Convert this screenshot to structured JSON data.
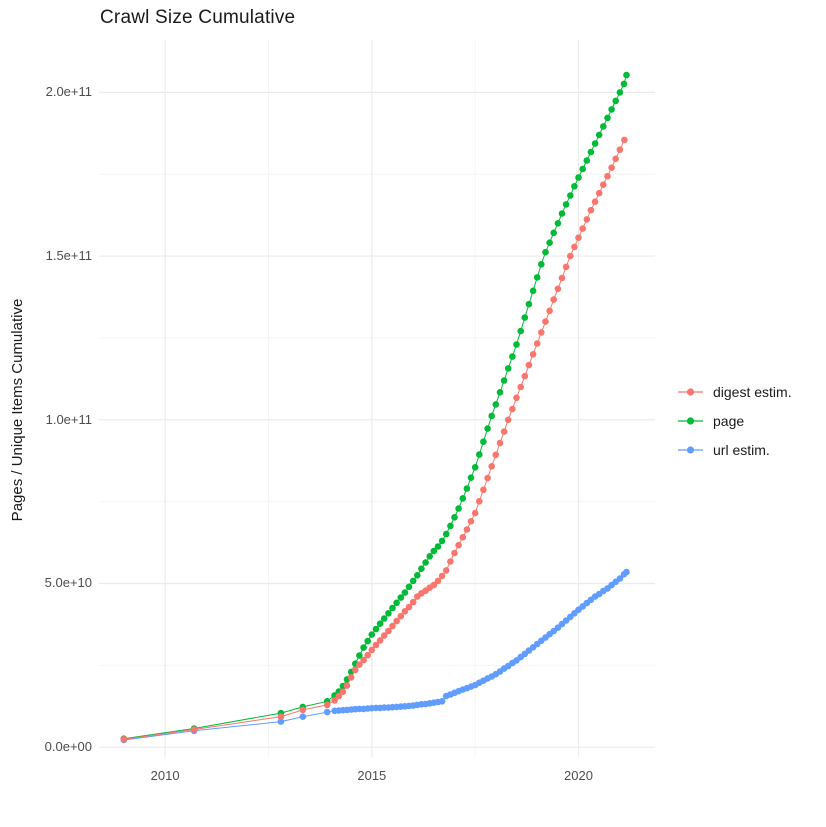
{
  "title": "Crawl Size Cumulative",
  "chart_data": {
    "type": "scatter",
    "title": "Crawl Size Cumulative",
    "xlabel": "",
    "ylabel": "Pages / Unique Items Cumulative",
    "legend_position": "right",
    "grid": true,
    "y_unit_note": "y values below are in billions (1e9) of pages / unique items",
    "xlim": [
      2008.4,
      2021.85
    ],
    "ylim": [
      -3,
      216
    ],
    "x_ticks": [
      {
        "value": 2010,
        "label": "2010"
      },
      {
        "value": 2015,
        "label": "2015"
      },
      {
        "value": 2020,
        "label": "2020"
      }
    ],
    "y_ticks": [
      {
        "value": 0,
        "label": "0.0e+00"
      },
      {
        "value": 50,
        "label": "5.0e+10"
      },
      {
        "value": 100,
        "label": "1.0e+11"
      },
      {
        "value": 150,
        "label": "1.5e+11"
      },
      {
        "value": 200,
        "label": "2.0e+11"
      }
    ],
    "x_minor": [
      2012.5,
      2017.5
    ],
    "y_minor": [
      25,
      75,
      125,
      175
    ],
    "series": [
      {
        "name": "digest estim.",
        "color": "#F8766D",
        "points": [
          [
            2009.0,
            2.4
          ],
          [
            2010.7,
            5.4
          ],
          [
            2012.8,
            9.3
          ],
          [
            2013.33,
            11.4
          ],
          [
            2013.92,
            12.9
          ],
          [
            2014.1,
            14.3
          ],
          [
            2014.2,
            15.6
          ],
          [
            2014.3,
            16.9
          ],
          [
            2014.4,
            18.8
          ],
          [
            2014.5,
            21.3
          ],
          [
            2014.6,
            23.6
          ],
          [
            2014.7,
            25.2
          ],
          [
            2014.8,
            26.6
          ],
          [
            2014.9,
            28.1
          ],
          [
            2015.0,
            29.7
          ],
          [
            2015.1,
            31.2
          ],
          [
            2015.2,
            32.6
          ],
          [
            2015.3,
            34.1
          ],
          [
            2015.4,
            35.5
          ],
          [
            2015.5,
            37.0
          ],
          [
            2015.6,
            38.5
          ],
          [
            2015.7,
            40.0
          ],
          [
            2015.8,
            41.5
          ],
          [
            2015.9,
            42.8
          ],
          [
            2016.0,
            44.3
          ],
          [
            2016.1,
            46.0
          ],
          [
            2016.2,
            47.0
          ],
          [
            2016.3,
            47.8
          ],
          [
            2016.4,
            48.7
          ],
          [
            2016.5,
            49.5
          ],
          [
            2016.6,
            50.8
          ],
          [
            2016.7,
            52.3
          ],
          [
            2016.8,
            54.0
          ],
          [
            2016.9,
            56.7
          ],
          [
            2017.0,
            59.3
          ],
          [
            2017.1,
            61.7
          ],
          [
            2017.2,
            64.1
          ],
          [
            2017.3,
            66.5
          ],
          [
            2017.4,
            69.0
          ],
          [
            2017.5,
            71.5
          ],
          [
            2017.6,
            75.1
          ],
          [
            2017.7,
            78.6
          ],
          [
            2017.8,
            82.2
          ],
          [
            2017.9,
            85.8
          ],
          [
            2018.0,
            89.3
          ],
          [
            2018.1,
            92.9
          ],
          [
            2018.2,
            96.4
          ],
          [
            2018.3,
            100.0
          ],
          [
            2018.4,
            103.3
          ],
          [
            2018.5,
            106.7
          ],
          [
            2018.6,
            110.0
          ],
          [
            2018.7,
            113.3
          ],
          [
            2018.8,
            116.7
          ],
          [
            2018.9,
            120.0
          ],
          [
            2019.0,
            123.3
          ],
          [
            2019.1,
            126.7
          ],
          [
            2019.2,
            130.0
          ],
          [
            2019.3,
            133.3
          ],
          [
            2019.4,
            136.7
          ],
          [
            2019.5,
            140.0
          ],
          [
            2019.6,
            143.3
          ],
          [
            2019.7,
            146.7
          ],
          [
            2019.8,
            150.0
          ],
          [
            2019.9,
            152.8
          ],
          [
            2020.0,
            155.6
          ],
          [
            2020.1,
            158.4
          ],
          [
            2020.2,
            161.2
          ],
          [
            2020.3,
            164.0
          ],
          [
            2020.4,
            166.6
          ],
          [
            2020.5,
            169.2
          ],
          [
            2020.6,
            171.8
          ],
          [
            2020.7,
            174.4
          ],
          [
            2020.8,
            177.0
          ],
          [
            2020.9,
            179.7
          ],
          [
            2021.0,
            182.5
          ],
          [
            2021.11,
            185.5
          ]
        ]
      },
      {
        "name": "page",
        "color": "#00BA38",
        "points": [
          [
            2009.0,
            2.6
          ],
          [
            2010.7,
            5.7
          ],
          [
            2012.8,
            10.4
          ],
          [
            2013.33,
            12.3
          ],
          [
            2013.92,
            14.0
          ],
          [
            2014.1,
            15.8
          ],
          [
            2014.2,
            17.0
          ],
          [
            2014.3,
            18.7
          ],
          [
            2014.4,
            20.7
          ],
          [
            2014.5,
            23.0
          ],
          [
            2014.6,
            25.5
          ],
          [
            2014.7,
            28.0
          ],
          [
            2014.8,
            30.4
          ],
          [
            2014.9,
            32.4
          ],
          [
            2015.0,
            34.4
          ],
          [
            2015.1,
            36.1
          ],
          [
            2015.2,
            37.7
          ],
          [
            2015.3,
            39.3
          ],
          [
            2015.4,
            40.9
          ],
          [
            2015.5,
            42.5
          ],
          [
            2015.6,
            44.1
          ],
          [
            2015.7,
            45.7
          ],
          [
            2015.8,
            47.2
          ],
          [
            2015.9,
            49.0
          ],
          [
            2016.0,
            50.8
          ],
          [
            2016.1,
            52.5
          ],
          [
            2016.2,
            54.5
          ],
          [
            2016.3,
            56.4
          ],
          [
            2016.4,
            58.3
          ],
          [
            2016.5,
            59.9
          ],
          [
            2016.6,
            61.3
          ],
          [
            2016.7,
            63.0
          ],
          [
            2016.8,
            65.1
          ],
          [
            2016.9,
            67.6
          ],
          [
            2017.0,
            70.2
          ],
          [
            2017.1,
            72.9
          ],
          [
            2017.2,
            76.0
          ],
          [
            2017.3,
            79.0
          ],
          [
            2017.4,
            82.3
          ],
          [
            2017.5,
            85.5
          ],
          [
            2017.6,
            89.4
          ],
          [
            2017.7,
            93.3
          ],
          [
            2017.8,
            97.3
          ],
          [
            2017.9,
            101.2
          ],
          [
            2018.0,
            104.7
          ],
          [
            2018.1,
            108.4
          ],
          [
            2018.2,
            112.0
          ],
          [
            2018.3,
            115.7
          ],
          [
            2018.4,
            119.3
          ],
          [
            2018.5,
            123.0
          ],
          [
            2018.6,
            127.1
          ],
          [
            2018.7,
            131.2
          ],
          [
            2018.8,
            135.3
          ],
          [
            2018.9,
            139.4
          ],
          [
            2019.0,
            143.5
          ],
          [
            2019.1,
            147.5
          ],
          [
            2019.2,
            151.2
          ],
          [
            2019.3,
            154.1
          ],
          [
            2019.4,
            157.1
          ],
          [
            2019.5,
            160.0
          ],
          [
            2019.6,
            163.0
          ],
          [
            2019.7,
            165.8
          ],
          [
            2019.8,
            168.5
          ],
          [
            2019.9,
            171.3
          ],
          [
            2020.0,
            174.0
          ],
          [
            2020.1,
            176.6
          ],
          [
            2020.2,
            179.2
          ],
          [
            2020.3,
            181.8
          ],
          [
            2020.4,
            184.4
          ],
          [
            2020.5,
            187.0
          ],
          [
            2020.6,
            189.6
          ],
          [
            2020.7,
            192.2
          ],
          [
            2020.8,
            194.8
          ],
          [
            2020.9,
            197.4
          ],
          [
            2021.0,
            200.0
          ],
          [
            2021.1,
            202.6
          ],
          [
            2021.16,
            205.3
          ]
        ]
      },
      {
        "name": "url estim.",
        "color": "#619CFF",
        "points": [
          [
            2009.0,
            2.2
          ],
          [
            2010.7,
            5.0
          ],
          [
            2012.8,
            7.8
          ],
          [
            2013.33,
            9.3
          ],
          [
            2013.92,
            10.7
          ],
          [
            2014.1,
            11.1
          ],
          [
            2014.2,
            11.2
          ],
          [
            2014.3,
            11.3
          ],
          [
            2014.4,
            11.4
          ],
          [
            2014.5,
            11.5
          ],
          [
            2014.6,
            11.6
          ],
          [
            2014.7,
            11.7
          ],
          [
            2014.8,
            11.7
          ],
          [
            2014.9,
            11.8
          ],
          [
            2015.0,
            11.9
          ],
          [
            2015.1,
            12.0
          ],
          [
            2015.2,
            12.0
          ],
          [
            2015.3,
            12.1
          ],
          [
            2015.4,
            12.1
          ],
          [
            2015.5,
            12.2
          ],
          [
            2015.6,
            12.3
          ],
          [
            2015.7,
            12.4
          ],
          [
            2015.8,
            12.5
          ],
          [
            2015.9,
            12.6
          ],
          [
            2016.0,
            12.7
          ],
          [
            2016.1,
            12.9
          ],
          [
            2016.2,
            13.1
          ],
          [
            2016.3,
            13.2
          ],
          [
            2016.4,
            13.4
          ],
          [
            2016.5,
            13.6
          ],
          [
            2016.6,
            13.8
          ],
          [
            2016.7,
            14.0
          ],
          [
            2016.8,
            15.6
          ],
          [
            2016.9,
            16.1
          ],
          [
            2017.0,
            16.6
          ],
          [
            2017.1,
            17.1
          ],
          [
            2017.2,
            17.6
          ],
          [
            2017.3,
            18.0
          ],
          [
            2017.4,
            18.5
          ],
          [
            2017.5,
            19.0
          ],
          [
            2017.6,
            19.7
          ],
          [
            2017.7,
            20.3
          ],
          [
            2017.8,
            21.0
          ],
          [
            2017.9,
            21.6
          ],
          [
            2018.0,
            22.3
          ],
          [
            2018.1,
            23.1
          ],
          [
            2018.2,
            24.0
          ],
          [
            2018.3,
            24.8
          ],
          [
            2018.4,
            25.7
          ],
          [
            2018.5,
            26.5
          ],
          [
            2018.6,
            27.5
          ],
          [
            2018.7,
            28.5
          ],
          [
            2018.8,
            29.5
          ],
          [
            2018.9,
            30.5
          ],
          [
            2019.0,
            31.5
          ],
          [
            2019.1,
            32.5
          ],
          [
            2019.2,
            33.5
          ],
          [
            2019.3,
            34.5
          ],
          [
            2019.4,
            35.5
          ],
          [
            2019.5,
            36.5
          ],
          [
            2019.6,
            37.6
          ],
          [
            2019.7,
            38.7
          ],
          [
            2019.8,
            39.8
          ],
          [
            2019.9,
            40.9
          ],
          [
            2020.0,
            42.0
          ],
          [
            2020.1,
            43.0
          ],
          [
            2020.2,
            44.0
          ],
          [
            2020.3,
            45.0
          ],
          [
            2020.4,
            46.0
          ],
          [
            2020.5,
            46.8
          ],
          [
            2020.6,
            47.7
          ],
          [
            2020.7,
            48.5
          ],
          [
            2020.8,
            49.5
          ],
          [
            2020.9,
            50.5
          ],
          [
            2021.0,
            51.5
          ],
          [
            2021.1,
            52.8
          ],
          [
            2021.16,
            53.5
          ]
        ]
      }
    ],
    "style": {
      "grid_major_color": "#ebebeb",
      "grid_minor_color": "#f4f4f4",
      "background": "#ffffff",
      "tick_label_color": "#4d4d4d",
      "text_color": "#1a1a1a"
    }
  }
}
